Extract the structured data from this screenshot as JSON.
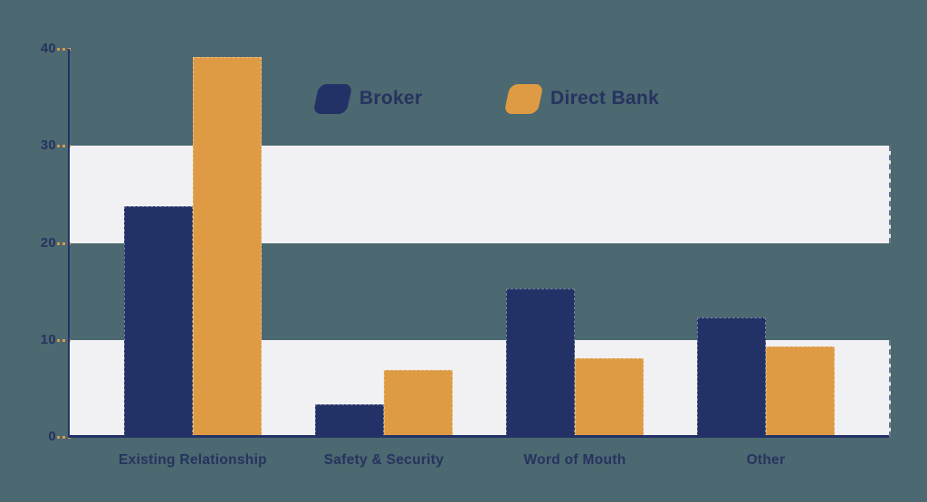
{
  "colors": {
    "background": "#4C6870",
    "navy": "#233266",
    "orange": "#DE9B43",
    "band": "#F1F1F3",
    "tick": "#D99952",
    "text": "#26335F"
  },
  "legend": {
    "items": [
      {
        "label": "Broker",
        "swatch": "navy"
      },
      {
        "label": "Direct Bank",
        "swatch": "orange"
      }
    ]
  },
  "chart_data": {
    "type": "bar",
    "categories": [
      "Existing Relationship",
      "Safety & Security",
      "Word of Mouth",
      "Other"
    ],
    "series": [
      {
        "name": "Broker",
        "color_key": "navy",
        "values": [
          23.8,
          3.4,
          15.3,
          12.3
        ]
      },
      {
        "name": "Direct Bank",
        "color_key": "orange",
        "values": [
          39.2,
          6.9,
          8.1,
          9.3
        ]
      }
    ],
    "title": "",
    "xlabel": "",
    "ylabel": "",
    "ylim": [
      0,
      40
    ],
    "y_ticks": [
      40,
      30,
      20,
      10,
      0
    ],
    "grid_bands": [
      [
        20,
        30
      ],
      [
        0,
        10
      ]
    ],
    "grid": "horizontal-bands",
    "legend_position": "top-inside"
  }
}
